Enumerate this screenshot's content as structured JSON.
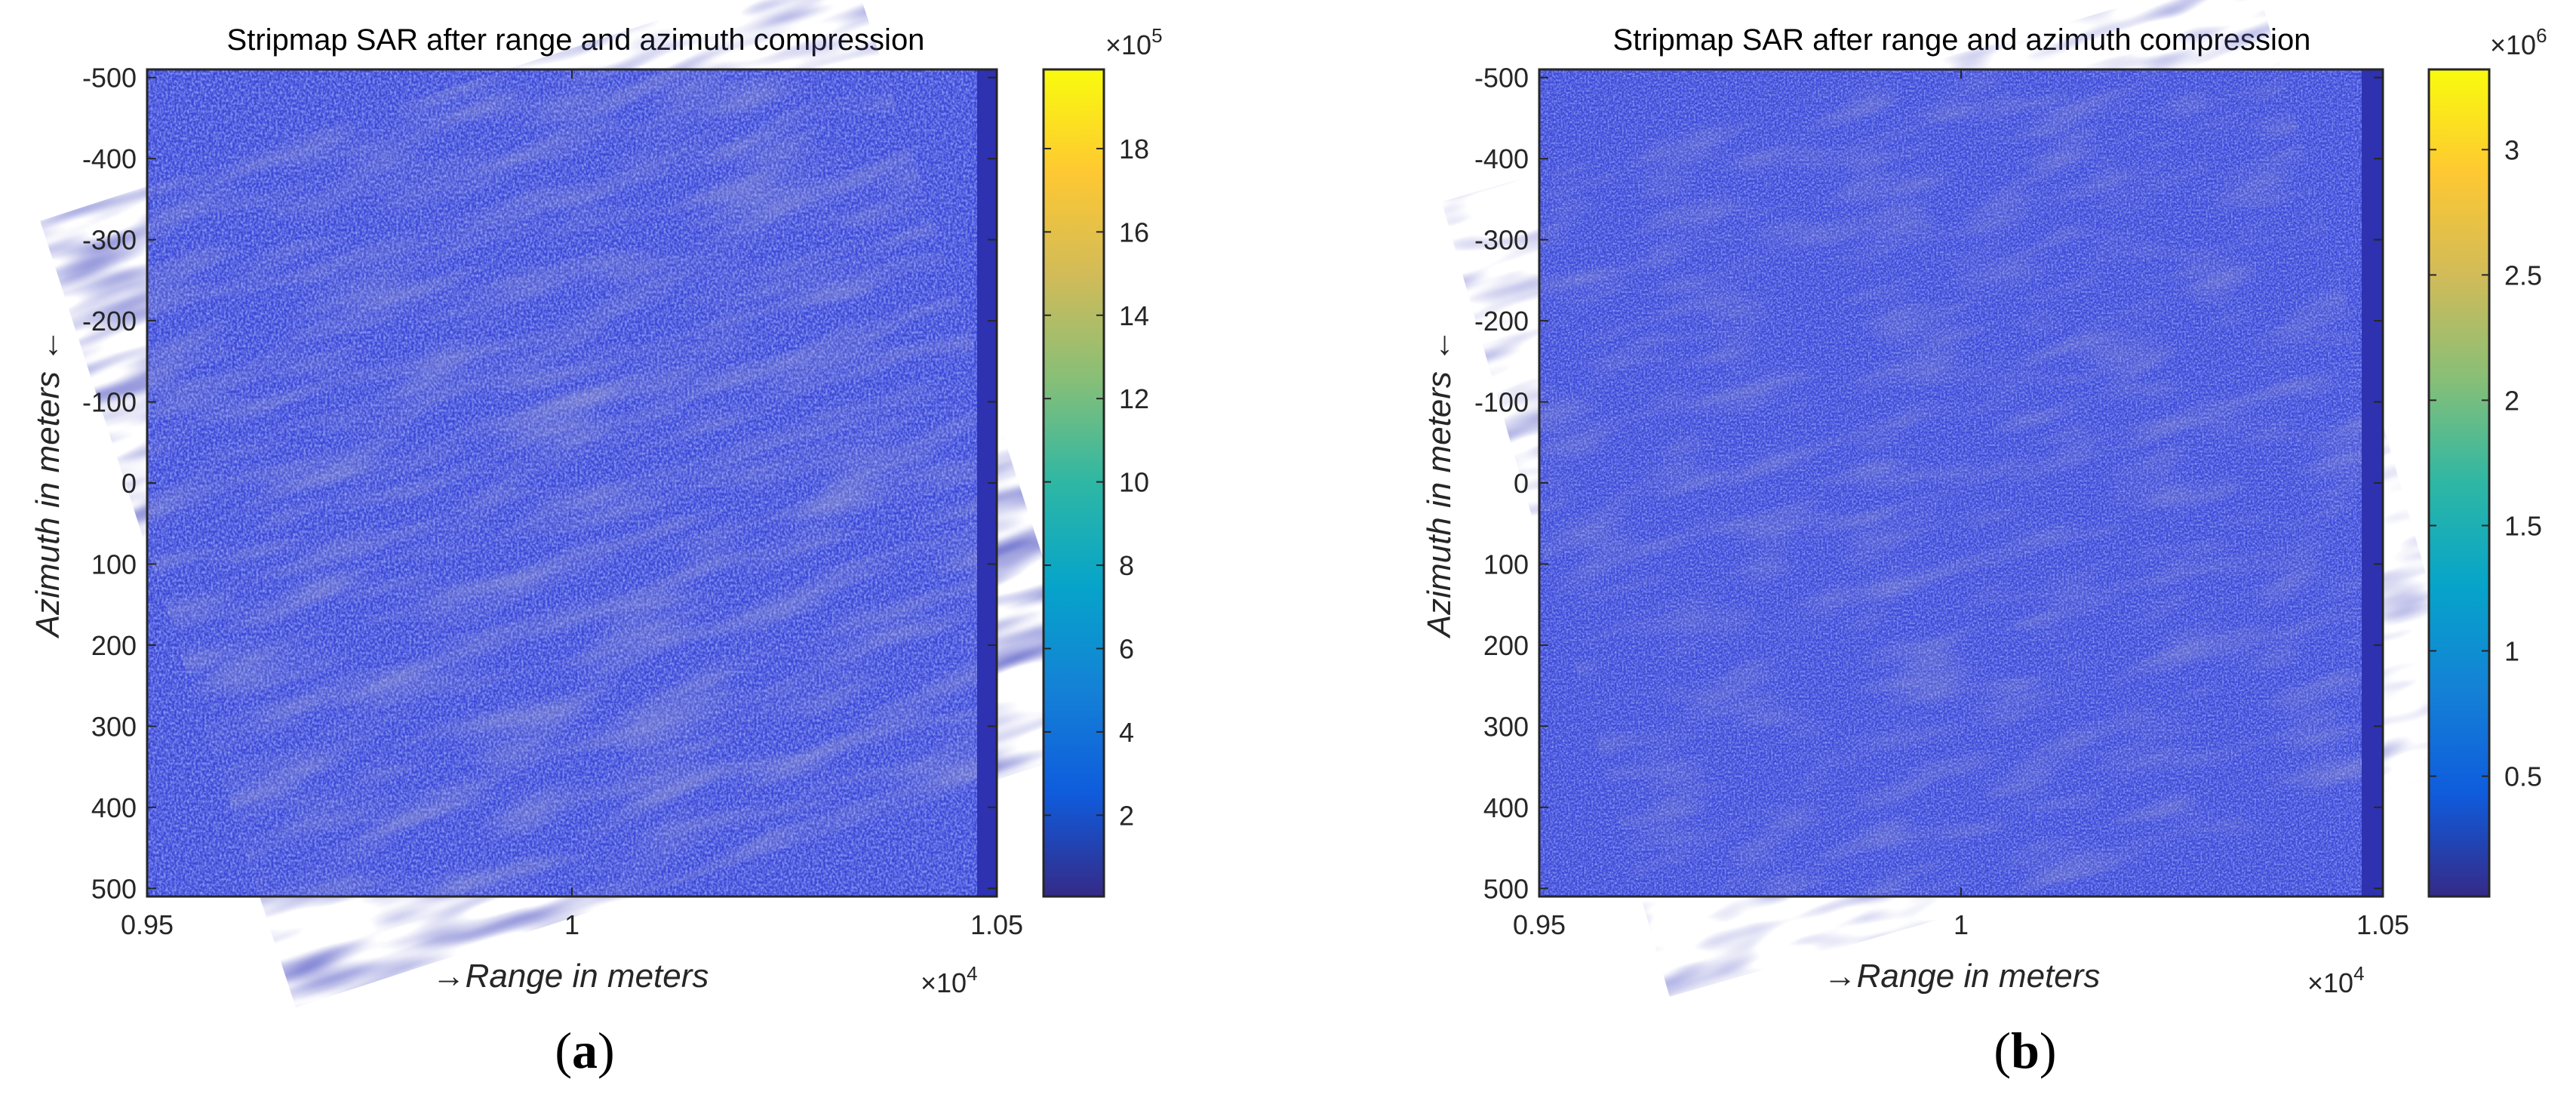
{
  "panels": [
    {
      "label": "(a)",
      "label_parts": [
        "(",
        "a",
        ")"
      ],
      "title": "Stripmap SAR after range and azimuth compression",
      "xlabel": "→Range in meters",
      "ylabel": "Azimuth in meters ←",
      "x_ticks": [
        "0.95",
        "1",
        "1.05"
      ],
      "x_tick_values": [
        9500,
        10000,
        10500
      ],
      "x_exponent": "×10",
      "x_exponent_power": "4",
      "y_ticks": [
        "-500",
        "-400",
        "-300",
        "-200",
        "-100",
        "0",
        "100",
        "200",
        "300",
        "400",
        "500"
      ],
      "y_tick_values": [
        -500,
        -400,
        -300,
        -200,
        -100,
        0,
        100,
        200,
        300,
        400,
        500
      ],
      "colorbar": {
        "ticks": [
          "2",
          "4",
          "6",
          "8",
          "10",
          "12",
          "14",
          "16",
          "18"
        ],
        "tick_values": [
          2,
          4,
          6,
          8,
          10,
          12,
          14,
          16,
          18
        ],
        "range": [
          0.05,
          19.9
        ],
        "exponent": "×10",
        "exponent_power": "5"
      }
    },
    {
      "label": "(b)",
      "label_parts": [
        "(",
        "b",
        ")"
      ],
      "title": "Stripmap SAR after range and azimuth compression",
      "xlabel": "→Range in meters",
      "ylabel": "Azimuth in meters ←",
      "x_ticks": [
        "0.95",
        "1",
        "1.05"
      ],
      "x_tick_values": [
        9500,
        10000,
        10500
      ],
      "x_exponent": "×10",
      "x_exponent_power": "4",
      "y_ticks": [
        "-500",
        "-400",
        "-300",
        "-200",
        "-100",
        "0",
        "100",
        "200",
        "300",
        "400",
        "500"
      ],
      "y_tick_values": [
        -500,
        -400,
        -300,
        -200,
        -100,
        0,
        100,
        200,
        300,
        400,
        500
      ],
      "colorbar": {
        "ticks": [
          "0.5",
          "1",
          "1.5",
          "2",
          "2.5",
          "3"
        ],
        "tick_values": [
          0.5,
          1,
          1.5,
          2,
          2.5,
          3
        ],
        "range": [
          0.02,
          3.32
        ],
        "exponent": "×10",
        "exponent_power": "6"
      }
    }
  ],
  "chart_data": [
    {
      "type": "heatmap",
      "title": "Stripmap SAR after range and azimuth compression",
      "xlabel": "→Range in meters",
      "ylabel": "Azimuth in meters ←",
      "xlim": [
        9500,
        10500
      ],
      "ylim": [
        -510,
        510
      ],
      "y_direction": "reverse",
      "colormap": "parula",
      "colorbar_range": [
        5000,
        1990000
      ],
      "description": "Speckle-like field of low magnitudes (blue, roughly 1e5-4e5) across the whole range-azimuth extent with faint diagonal streaking; a darker vertical band at the far-range edge near 1.049e4 m."
    },
    {
      "type": "heatmap",
      "title": "Stripmap SAR after range and azimuth compression",
      "xlabel": "→Range in meters",
      "ylabel": "Azimuth in meters ←",
      "xlim": [
        9500,
        10500
      ],
      "ylim": [
        -510,
        510
      ],
      "y_direction": "reverse",
      "colormap": "parula",
      "colorbar_range": [
        20000,
        3320000
      ],
      "description": "Speckle-like field of low magnitudes (blue, roughly 2e5-7e5) across the whole extent with weaker diagonal texture; a darker vertical band at the far-range edge near 1.049e4 m."
    }
  ],
  "colors": {
    "parula": [
      "#352a87",
      "#0f5cdd",
      "#1481d6",
      "#06a4ca",
      "#2eb7a4",
      "#87bf77",
      "#d1bb59",
      "#fec832",
      "#f9fb0e"
    ],
    "field_base": "#3d47d8",
    "field_dark": "#2b2ca8",
    "field_light": "#5a7af0",
    "edge_band": "#2e31b0",
    "axis": "#262626",
    "label": "#262626"
  }
}
